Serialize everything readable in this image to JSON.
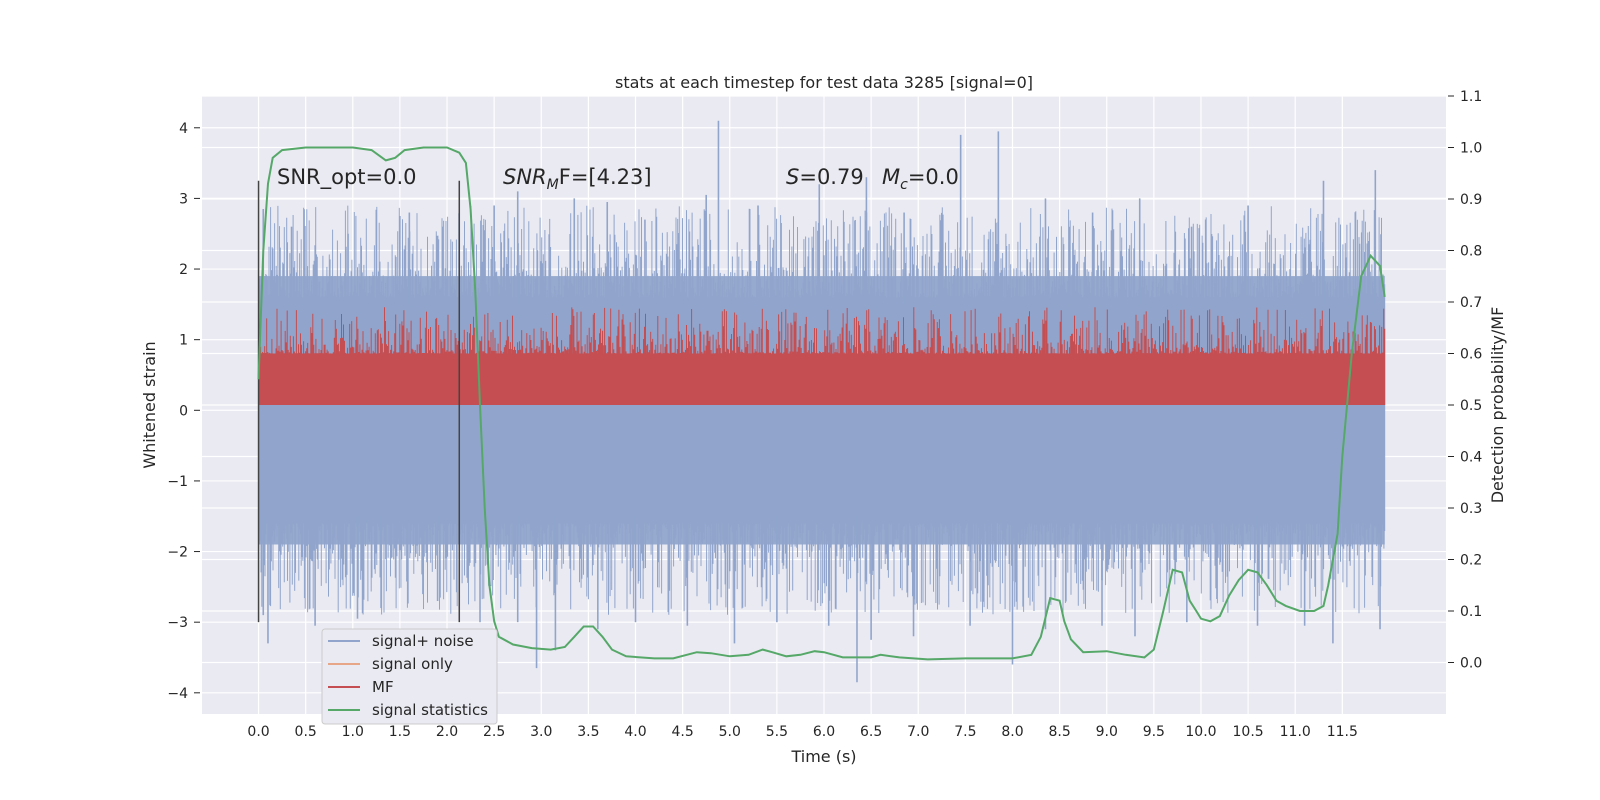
{
  "chart_data": {
    "type": "line",
    "title": "stats at each timestep for test data 3285 [signal=0]",
    "xlabel": "Time (s)",
    "ylabel_left": "Whitened strain",
    "ylabel_right": "Detection probability/MF",
    "xlim": [
      -0.6,
      12.6
    ],
    "ylim_left": [
      -4.3,
      4.45
    ],
    "ylim_right": [
      -0.1,
      1.1
    ],
    "x_ticks": [
      0.0,
      0.5,
      1.0,
      1.5,
      2.0,
      2.5,
      3.0,
      3.5,
      4.0,
      4.5,
      5.0,
      5.5,
      6.0,
      6.5,
      7.0,
      7.5,
      8.0,
      8.5,
      9.0,
      9.5,
      10.0,
      10.5,
      11.0,
      11.5
    ],
    "x_tick_labels": [
      "0.0",
      "0.5",
      "1.0",
      "1.5",
      "2.0",
      "2.5",
      "3.0",
      "3.5",
      "4.0",
      "4.5",
      "5.0",
      "5.5",
      "6.0",
      "6.5",
      "7.0",
      "7.5",
      "8.0",
      "8.5",
      "9.0",
      "9.5",
      "10.0",
      "10.5",
      "11.0",
      "11.5"
    ],
    "y_left_ticks": [
      -4,
      -3,
      -2,
      -1,
      0,
      1,
      2,
      3,
      4
    ],
    "y_left_tick_labels": [
      "−4",
      "−3",
      "−2",
      "−1",
      "0",
      "1",
      "2",
      "3",
      "4"
    ],
    "y_right_ticks": [
      0.0,
      0.1,
      0.2,
      0.3,
      0.4,
      0.5,
      0.6,
      0.7,
      0.8,
      0.9,
      1.0,
      1.1
    ],
    "y_right_tick_labels": [
      "0.0",
      "0.1",
      "0.2",
      "0.3",
      "0.4",
      "0.5",
      "0.6",
      "0.7",
      "0.8",
      "0.9",
      "1.0",
      "1.1"
    ],
    "grid": true,
    "legend_placement": "lower-left",
    "annotations": {
      "snr_opt": "SNR_opt=0.0",
      "snr_mf_label": "SNR",
      "snr_mf_sub": "M",
      "snr_mf_value": "F=[4.23]",
      "s_label": "S",
      "s_value": "=0.79",
      "mc_label": "M",
      "mc_sub": "c",
      "mc_value": "=0.0"
    },
    "markers": {
      "vertical_lines_x": [
        0.0,
        2.13
      ],
      "vertical_lines_range": [
        -3.0,
        3.25
      ]
    },
    "series": [
      {
        "name": "signal+ noise",
        "color": "#91a5cc",
        "axis": "left",
        "x_range": [
          0.0,
          11.95
        ],
        "envelope_band": [
          -1.9,
          1.9
        ],
        "spikes_up": [
          [
            0.05,
            2.85
          ],
          [
            0.35,
            2.6
          ],
          [
            0.95,
            2.5
          ],
          [
            1.6,
            2.8
          ],
          [
            1.95,
            2.6
          ],
          [
            2.5,
            2.9
          ],
          [
            2.75,
            3.1
          ],
          [
            3.35,
            3.0
          ],
          [
            3.7,
            2.95
          ],
          [
            4.1,
            2.7
          ],
          [
            4.75,
            3.05
          ],
          [
            4.88,
            4.1
          ],
          [
            5.3,
            2.9
          ],
          [
            5.95,
            3.2
          ],
          [
            6.45,
            3.3
          ],
          [
            6.85,
            2.8
          ],
          [
            7.45,
            3.9
          ],
          [
            7.85,
            3.95
          ],
          [
            8.35,
            3.0
          ],
          [
            8.85,
            2.8
          ],
          [
            9.35,
            3.0
          ],
          [
            9.9,
            2.6
          ],
          [
            10.5,
            2.9
          ],
          [
            11.3,
            3.25
          ],
          [
            11.85,
            3.4
          ]
        ],
        "spikes_down": [
          [
            0.05,
            -2.9
          ],
          [
            0.1,
            -3.3
          ],
          [
            0.6,
            -3.05
          ],
          [
            1.05,
            -2.95
          ],
          [
            1.3,
            -2.8
          ],
          [
            1.9,
            -2.7
          ],
          [
            2.35,
            -3.0
          ],
          [
            2.75,
            -3.0
          ],
          [
            2.95,
            -3.65
          ],
          [
            3.15,
            -3.4
          ],
          [
            3.6,
            -3.1
          ],
          [
            4.0,
            -3.0
          ],
          [
            4.55,
            -3.05
          ],
          [
            5.05,
            -3.3
          ],
          [
            5.5,
            -3.0
          ],
          [
            6.05,
            -3.05
          ],
          [
            6.35,
            -3.85
          ],
          [
            6.5,
            -3.25
          ],
          [
            6.95,
            -3.2
          ],
          [
            7.55,
            -3.05
          ],
          [
            8.0,
            -3.6
          ],
          [
            8.35,
            -3.1
          ],
          [
            8.95,
            -3.05
          ],
          [
            9.3,
            -3.2
          ],
          [
            9.85,
            -3.0
          ],
          [
            10.6,
            -3.05
          ],
          [
            11.1,
            -3.05
          ],
          [
            11.4,
            -3.3
          ],
          [
            11.9,
            -3.1
          ]
        ]
      },
      {
        "name": "signal only",
        "color": "#e8a688",
        "axis": "left",
        "values_flat": 0
      },
      {
        "name": "MF",
        "color": "#c44e52",
        "axis": "right",
        "x_range": [
          0.0,
          11.95
        ],
        "band": [
          0.5,
          0.6
        ],
        "peak_max": 0.69
      },
      {
        "name": "signal statistics",
        "color": "#55a868",
        "axis": "right",
        "points": [
          [
            0.0,
            0.55
          ],
          [
            0.05,
            0.8
          ],
          [
            0.1,
            0.93
          ],
          [
            0.15,
            0.98
          ],
          [
            0.25,
            0.995
          ],
          [
            0.5,
            1.0
          ],
          [
            1.0,
            1.0
          ],
          [
            1.2,
            0.995
          ],
          [
            1.35,
            0.975
          ],
          [
            1.45,
            0.98
          ],
          [
            1.55,
            0.995
          ],
          [
            1.75,
            1.0
          ],
          [
            2.0,
            1.0
          ],
          [
            2.13,
            0.99
          ],
          [
            2.2,
            0.97
          ],
          [
            2.25,
            0.88
          ],
          [
            2.3,
            0.72
          ],
          [
            2.35,
            0.5
          ],
          [
            2.4,
            0.3
          ],
          [
            2.45,
            0.15
          ],
          [
            2.5,
            0.08
          ],
          [
            2.55,
            0.05
          ],
          [
            2.7,
            0.035
          ],
          [
            2.9,
            0.028
          ],
          [
            3.1,
            0.025
          ],
          [
            3.25,
            0.03
          ],
          [
            3.35,
            0.05
          ],
          [
            3.45,
            0.07
          ],
          [
            3.55,
            0.07
          ],
          [
            3.65,
            0.05
          ],
          [
            3.75,
            0.025
          ],
          [
            3.9,
            0.012
          ],
          [
            4.2,
            0.008
          ],
          [
            4.4,
            0.008
          ],
          [
            4.65,
            0.02
          ],
          [
            4.8,
            0.018
          ],
          [
            5.0,
            0.012
          ],
          [
            5.2,
            0.015
          ],
          [
            5.35,
            0.025
          ],
          [
            5.45,
            0.02
          ],
          [
            5.6,
            0.012
          ],
          [
            5.75,
            0.015
          ],
          [
            5.9,
            0.022
          ],
          [
            6.0,
            0.02
          ],
          [
            6.2,
            0.01
          ],
          [
            6.5,
            0.01
          ],
          [
            6.6,
            0.015
          ],
          [
            6.8,
            0.01
          ],
          [
            7.1,
            0.006
          ],
          [
            7.5,
            0.008
          ],
          [
            8.0,
            0.008
          ],
          [
            8.2,
            0.015
          ],
          [
            8.3,
            0.05
          ],
          [
            8.4,
            0.125
          ],
          [
            8.5,
            0.12
          ],
          [
            8.55,
            0.08
          ],
          [
            8.62,
            0.045
          ],
          [
            8.75,
            0.02
          ],
          [
            9.0,
            0.022
          ],
          [
            9.2,
            0.015
          ],
          [
            9.4,
            0.01
          ],
          [
            9.5,
            0.025
          ],
          [
            9.6,
            0.1
          ],
          [
            9.7,
            0.18
          ],
          [
            9.8,
            0.175
          ],
          [
            9.88,
            0.12
          ],
          [
            9.95,
            0.1
          ],
          [
            10.0,
            0.085
          ],
          [
            10.1,
            0.08
          ],
          [
            10.2,
            0.09
          ],
          [
            10.3,
            0.13
          ],
          [
            10.4,
            0.16
          ],
          [
            10.5,
            0.18
          ],
          [
            10.6,
            0.175
          ],
          [
            10.7,
            0.15
          ],
          [
            10.8,
            0.12
          ],
          [
            10.9,
            0.11
          ],
          [
            11.05,
            0.1
          ],
          [
            11.2,
            0.1
          ],
          [
            11.3,
            0.11
          ],
          [
            11.35,
            0.15
          ],
          [
            11.45,
            0.25
          ],
          [
            11.5,
            0.4
          ],
          [
            11.6,
            0.6
          ],
          [
            11.7,
            0.75
          ],
          [
            11.8,
            0.79
          ],
          [
            11.9,
            0.77
          ],
          [
            11.95,
            0.71
          ]
        ]
      }
    ]
  }
}
